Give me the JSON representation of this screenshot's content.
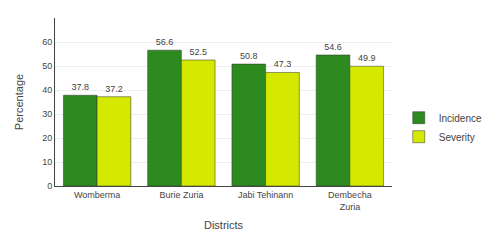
{
  "chart_data": {
    "type": "bar",
    "categories": [
      "Womberma",
      "Burie Zuria",
      "Jabi Tehinann",
      "Dembecha\nZuria"
    ],
    "series": [
      {
        "name": "Incidence",
        "color": "#2d8a1f",
        "values": [
          37.8,
          56.6,
          50.8,
          54.6
        ]
      },
      {
        "name": "Severity",
        "color": "#d4e800",
        "values": [
          37.2,
          52.5,
          47.3,
          49.9
        ]
      }
    ],
    "x_label": "Districts",
    "y_label": "Percentage",
    "ylim": [
      0,
      70
    ],
    "yticks": [
      0,
      10,
      20,
      30,
      40,
      50,
      60
    ],
    "grid": true,
    "legend": "right",
    "data_labels": true
  }
}
